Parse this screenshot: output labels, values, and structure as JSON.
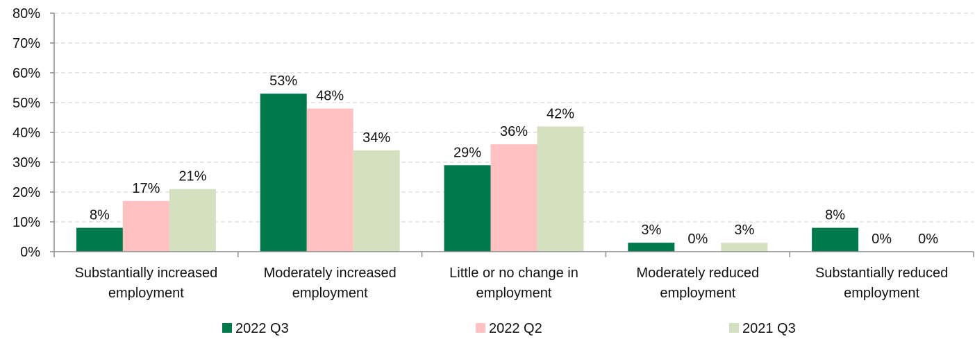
{
  "chart_data": {
    "type": "bar",
    "title": "",
    "xlabel": "",
    "ylabel": "",
    "ylim": [
      0,
      80
    ],
    "y_ticks": [
      "0%",
      "10%",
      "20%",
      "30%",
      "40%",
      "50%",
      "60%",
      "70%",
      "80%"
    ],
    "y_tick_values": [
      0,
      10,
      20,
      30,
      40,
      50,
      60,
      70,
      80
    ],
    "grid": true,
    "legend_position": "bottom",
    "categories": [
      [
        "Substantially increased",
        "employment"
      ],
      [
        "Moderately increased",
        "employment"
      ],
      [
        "Little or no change in",
        "employment"
      ],
      [
        "Moderately reduced",
        "employment"
      ],
      [
        "Substantially reduced",
        "employment"
      ]
    ],
    "series": [
      {
        "name": "2022 Q3",
        "color": "#007a4d",
        "values": [
          8,
          53,
          29,
          3,
          8
        ],
        "labels": [
          "8%",
          "53%",
          "29%",
          "3%",
          "8%"
        ]
      },
      {
        "name": "2022 Q2",
        "color": "#ffc1c1",
        "values": [
          17,
          48,
          36,
          0,
          0
        ],
        "labels": [
          "17%",
          "48%",
          "36%",
          "0%",
          "0%"
        ]
      },
      {
        "name": "2021 Q3",
        "color": "#d5e0c0",
        "values": [
          21,
          34,
          42,
          3,
          0
        ],
        "labels": [
          "21%",
          "34%",
          "42%",
          "3%",
          "0%"
        ]
      }
    ]
  }
}
